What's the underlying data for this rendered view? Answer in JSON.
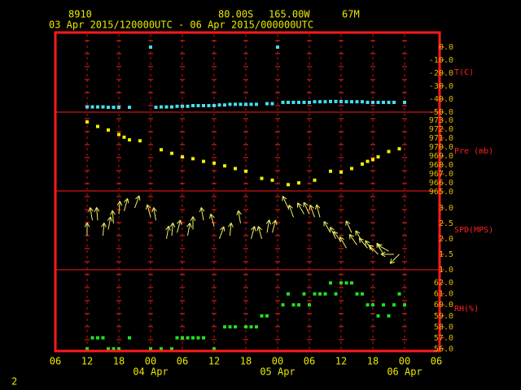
{
  "header": {
    "station": "8910",
    "latitude": "80.00S",
    "longitude": "165.00W",
    "elevation": "67M",
    "period": "03 Apr 2015/120000UTC - 06 Apr 2015/000000UTC",
    "page_number": "2"
  },
  "chart_data": [
    {
      "type": "scatter",
      "label": "T(C)",
      "color": "#40e0f0",
      "ylim": [
        -50,
        11.25
      ],
      "yticks": [
        {
          "value": 0,
          "label": "0.0"
        },
        {
          "value": -10,
          "label": "-10.0"
        },
        {
          "value": -20,
          "label": "-20.0"
        },
        {
          "value": -30,
          "label": "-30.0"
        },
        {
          "value": -40,
          "label": "-40.0"
        },
        {
          "value": -50,
          "label": "-50.0"
        }
      ],
      "x": [
        12,
        13,
        14,
        15,
        16,
        17,
        18,
        20,
        24,
        25,
        26,
        27,
        28,
        29,
        30,
        31,
        32,
        33,
        34,
        35,
        36,
        37,
        38,
        39,
        40,
        41,
        42,
        43,
        44,
        46,
        47,
        48,
        49,
        50,
        51,
        52,
        53,
        54,
        55,
        56,
        57,
        58,
        59,
        60,
        61,
        62,
        63,
        64,
        65,
        66,
        67,
        68,
        69,
        70,
        72
      ],
      "values": [
        -46,
        -46,
        -46,
        -46,
        -46.3,
        -46.3,
        -46.3,
        -46.3,
        0,
        -46.3,
        -46,
        -46,
        -46,
        -45.5,
        -45.5,
        -45.5,
        -45,
        -45,
        -45,
        -45,
        -45,
        -44.5,
        -44.5,
        -44,
        -44,
        -44,
        -44,
        -44,
        -44,
        -43.5,
        -43.5,
        0,
        -42.5,
        -42.5,
        -42.5,
        -42.5,
        -42.5,
        -42.5,
        -42,
        -42,
        -42,
        -41.8,
        -41.8,
        -41.8,
        -42,
        -42,
        -42,
        -42,
        -42.5,
        -42.5,
        -42.5,
        -42.5,
        -42.5,
        -42.5,
        -42.5
      ]
    },
    {
      "type": "scatter",
      "label": "Pre (mb)",
      "color": "#f0f000",
      "ylim": [
        965.1,
        973.9
      ],
      "yticks": [
        {
          "value": 973,
          "label": "973.0"
        },
        {
          "value": 972,
          "label": "972.0"
        },
        {
          "value": 971,
          "label": "971.0"
        },
        {
          "value": 970,
          "label": "970.0"
        },
        {
          "value": 969,
          "label": "969.0"
        },
        {
          "value": 968,
          "label": "968.0"
        },
        {
          "value": 967,
          "label": "967.0"
        },
        {
          "value": 966,
          "label": "966.0"
        },
        {
          "value": 965,
          "label": "965.0"
        }
      ],
      "x": [
        12,
        14,
        16,
        18,
        19,
        20,
        22,
        26,
        28,
        30,
        32,
        34,
        36,
        38,
        40,
        42,
        45,
        47,
        50,
        52,
        55,
        58,
        60,
        62,
        64,
        65,
        66,
        67,
        69,
        71
      ],
      "values": [
        972.8,
        972.3,
        971.9,
        971.4,
        971.1,
        970.8,
        970.7,
        969.7,
        969.3,
        968.9,
        968.7,
        968.4,
        968.2,
        967.9,
        967.6,
        967.3,
        966.5,
        966.3,
        965.8,
        966.0,
        966.3,
        967.3,
        967.2,
        967.6,
        968.1,
        968.4,
        968.6,
        968.9,
        969.5,
        969.8
      ]
    },
    {
      "type": "arrow",
      "label": "SPD(MPS)",
      "color": "#f0f060",
      "ylim": [
        1.0,
        3.55
      ],
      "yticks": [
        {
          "value": 3,
          "label": "3.0"
        },
        {
          "value": 2.5,
          "label": "2.5"
        },
        {
          "value": 2,
          "label": "2.0"
        },
        {
          "value": 1.5,
          "label": "1.5"
        },
        {
          "value": 1,
          "label": "1.0"
        }
      ],
      "x": [
        12,
        13,
        14,
        15,
        16,
        17,
        18,
        19,
        21,
        24,
        25,
        27,
        28,
        29,
        31,
        32,
        34,
        36,
        37,
        39,
        41,
        43,
        45,
        46,
        47,
        50,
        51,
        53,
        54,
        55,
        56,
        58,
        59,
        60,
        61,
        62,
        63,
        64,
        65,
        66,
        67,
        68,
        69,
        70,
        71
      ],
      "values": [
        2.1,
        2.6,
        2.6,
        2.1,
        2.3,
        2.5,
        2.8,
        2.9,
        3.0,
        2.7,
        2.6,
        2.0,
        2.1,
        2.2,
        2.1,
        2.3,
        2.6,
        2.4,
        2.0,
        2.1,
        2.5,
        2.0,
        2.0,
        2.2,
        2.2,
        3.0,
        2.7,
        2.8,
        2.8,
        2.7,
        2.7,
        2.2,
        2.0,
        1.9,
        1.7,
        2.2,
        1.8,
        1.9,
        1.7,
        1.6,
        1.5,
        1.5,
        1.6,
        1.5,
        1.5
      ],
      "direction": [
        0,
        350,
        355,
        5,
        10,
        355,
        5,
        15,
        20,
        345,
        350,
        10,
        5,
        15,
        10,
        0,
        350,
        345,
        20,
        5,
        350,
        15,
        345,
        10,
        15,
        335,
        340,
        330,
        335,
        340,
        345,
        330,
        335,
        325,
        330,
        335,
        325,
        330,
        320,
        325,
        315,
        330,
        300,
        270,
        225
      ]
    },
    {
      "type": "scatter",
      "label": "RH(%)",
      "color": "#20e020",
      "ylim": [
        55.8,
        63.2
      ],
      "yticks": [
        {
          "value": 62,
          "label": "62.0"
        },
        {
          "value": 61,
          "label": "61.0"
        },
        {
          "value": 60,
          "label": "60.0"
        },
        {
          "value": 59,
          "label": "59.0"
        },
        {
          "value": 58,
          "label": "58.0"
        },
        {
          "value": 57,
          "label": "57.0"
        },
        {
          "value": 56,
          "label": "56.0"
        }
      ],
      "x": [
        12,
        13,
        14,
        15,
        16,
        17,
        18,
        20,
        24,
        26,
        28,
        29,
        30,
        31,
        32,
        33,
        34,
        36,
        38,
        39,
        40,
        42,
        43,
        44,
        45,
        46,
        49,
        50,
        51,
        52,
        53,
        54,
        55,
        56,
        57,
        58,
        59,
        60,
        61,
        62,
        63,
        64,
        65,
        66,
        67,
        68,
        69,
        70,
        71,
        72
      ],
      "values": [
        56,
        57,
        57,
        57,
        56,
        56,
        56,
        57,
        56,
        56,
        56,
        57,
        57,
        57,
        57,
        57,
        57,
        56,
        58,
        58,
        58,
        58,
        58,
        58,
        59,
        59,
        60,
        61,
        60,
        60,
        61,
        60,
        61,
        61,
        61,
        62,
        61,
        62,
        62,
        62,
        61,
        61,
        60,
        60,
        59,
        60,
        59,
        60,
        61,
        60
      ],
      "xlim": [
        6,
        78
      ],
      "xticks": [
        {
          "value": 6,
          "label": "06"
        },
        {
          "value": 12,
          "label": "12"
        },
        {
          "value": 18,
          "label": "18"
        },
        {
          "value": 24,
          "label": "00"
        },
        {
          "value": 30,
          "label": "06"
        },
        {
          "value": 36,
          "label": "12"
        },
        {
          "value": 42,
          "label": "18"
        },
        {
          "value": 48,
          "label": "00"
        },
        {
          "value": 54,
          "label": "06"
        },
        {
          "value": 60,
          "label": "12"
        },
        {
          "value": 66,
          "label": "18"
        },
        {
          "value": 72,
          "label": "00"
        },
        {
          "value": 78,
          "label": "06"
        }
      ],
      "date_labels": [
        {
          "value": 24,
          "label": "04 Apr"
        },
        {
          "value": 48,
          "label": "05 Apr"
        },
        {
          "value": 72,
          "label": "06 Apr"
        }
      ]
    }
  ]
}
